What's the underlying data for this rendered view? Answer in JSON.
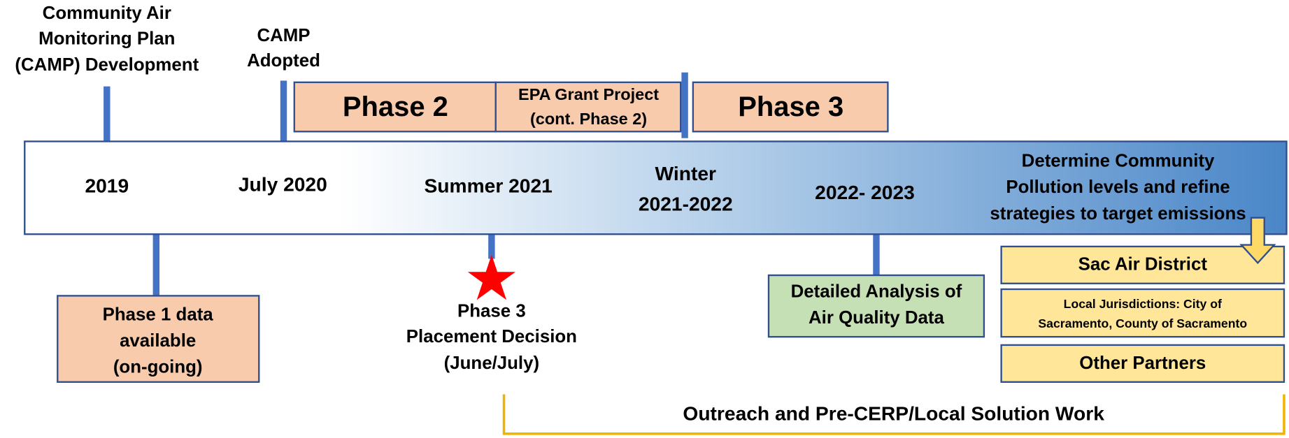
{
  "top_labels": [
    {
      "lines": [
        "Community Air",
        "Monitoring Plan",
        "(CAMP) Development"
      ]
    },
    {
      "lines": [
        "CAMP",
        "Adopted"
      ]
    }
  ],
  "phases": [
    {
      "lines": [
        "Phase 2"
      ]
    },
    {
      "lines": [
        "EPA Grant Project",
        "(cont. Phase 2)"
      ]
    },
    {
      "lines": [
        "Phase 3"
      ]
    }
  ],
  "timeline": [
    {
      "lines": [
        "2019"
      ]
    },
    {
      "lines": [
        "July 2020"
      ]
    },
    {
      "lines": [
        "Summer 2021"
      ]
    },
    {
      "lines": [
        "Winter",
        "2021-2022"
      ]
    },
    {
      "lines": [
        "2022- 2023"
      ]
    },
    {
      "lines": [
        "Determine Community",
        "Pollution levels and refine",
        "strategies to target emissions"
      ]
    }
  ],
  "bottom_labels": [
    {
      "lines": [
        "Phase 1 data",
        "available",
        "(on-going)"
      ]
    },
    {
      "lines": [
        "Phase 3",
        "Placement Decision",
        "(June/July)"
      ]
    },
    {
      "lines": [
        "Detailed Analysis of",
        "Air Quality Data"
      ]
    }
  ],
  "partners": [
    {
      "lines": [
        "Sac Air District"
      ]
    },
    {
      "lines": [
        "Local Jurisdictions: City of",
        "Sacramento, County of Sacramento"
      ]
    },
    {
      "lines": [
        "Other Partners"
      ]
    }
  ],
  "bracket_label": "Outreach and Pre-CERP/Local Solution Work"
}
